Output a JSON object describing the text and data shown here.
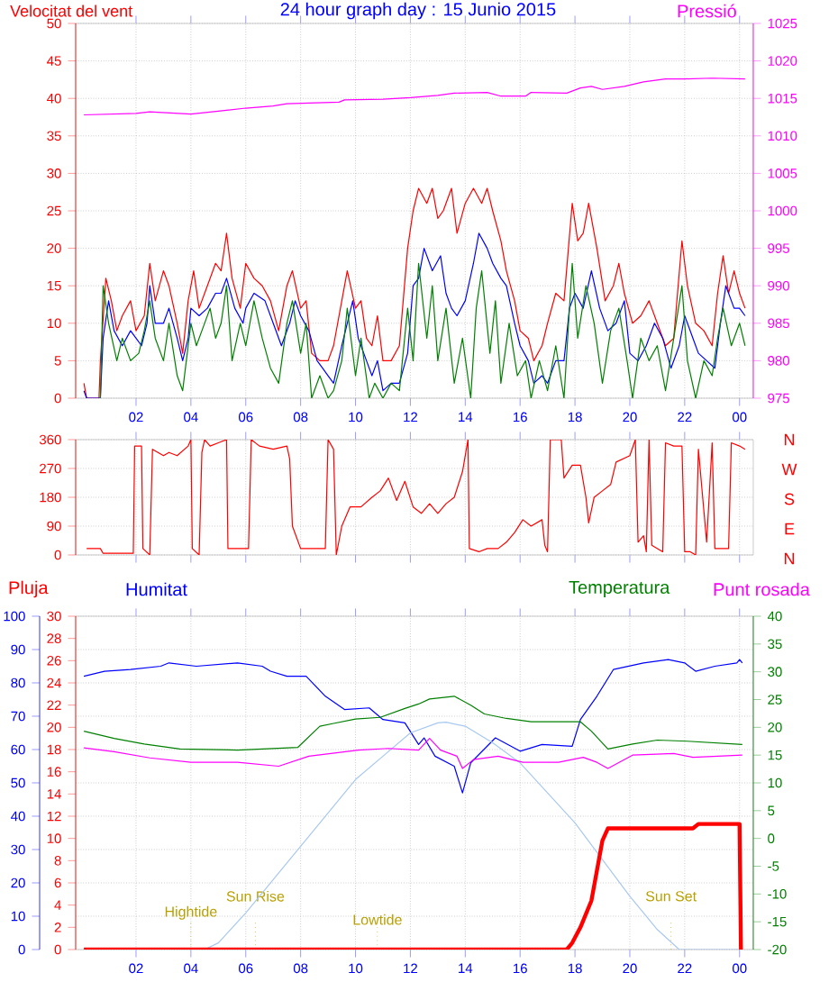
{
  "chart_data": [
    {
      "type": "line",
      "title": "24 hour graph day : 15 Junio 2015",
      "ylabel": "Velocitat del vent",
      "grid": true,
      "xlim": [
        "2015-06-14T23:48",
        "2015-06-16T00:30"
      ],
      "xticks": [
        {
          "value": "2015-06-15T02:00",
          "label": "02"
        },
        {
          "value": "2015-06-15T04:00",
          "label": "04"
        },
        {
          "value": "2015-06-15T06:00",
          "label": "06"
        },
        {
          "value": "2015-06-15T08:00",
          "label": "08"
        },
        {
          "value": "2015-06-15T10:00",
          "label": "10"
        },
        {
          "value": "2015-06-15T12:00",
          "label": "12"
        },
        {
          "value": "2015-06-15T14:00",
          "label": "14"
        },
        {
          "value": "2015-06-15T16:00",
          "label": "16"
        },
        {
          "value": "2015-06-15T18:00",
          "label": "18"
        },
        {
          "value": "2015-06-15T20:00",
          "label": "20"
        },
        {
          "value": "2015-06-15T22:00",
          "label": "22"
        },
        {
          "value": "2015-06-16T00:00",
          "label": "00"
        }
      ],
      "ylim": [
        0,
        50
      ],
      "yticks": [
        0,
        5,
        10,
        15,
        20,
        25,
        30,
        35,
        40,
        45,
        50
      ],
      "y2lim": [
        975,
        1025
      ],
      "y2ticks": [
        975,
        980,
        985,
        990,
        995,
        1000,
        1005,
        1010,
        1015,
        1020,
        1025
      ],
      "series": [
        {
          "color": "#ff0000",
          "x": [
            "2015-06-15T00:06",
            "2015-06-15T00:12",
            "2015-06-15T00:39",
            "2015-06-15T00:42",
            "2015-06-15T00:54",
            "2015-06-15T01:06",
            "2015-06-15T01:18",
            "2015-06-15T01:30",
            "2015-06-15T01:48",
            "2015-06-15T02:00",
            "2015-06-15T02:18",
            "2015-06-15T02:30",
            "2015-06-15T02:42",
            "2015-06-15T03:00",
            "2015-06-15T03:12",
            "2015-06-15T03:30",
            "2015-06-15T03:42",
            "2015-06-15T03:54",
            "2015-06-15T04:06",
            "2015-06-15T04:18",
            "2015-06-15T04:36",
            "2015-06-15T04:54",
            "2015-06-15T05:06",
            "2015-06-15T05:18",
            "2015-06-15T05:30",
            "2015-06-15T05:48",
            "2015-06-15T06:00",
            "2015-06-15T06:18",
            "2015-06-15T06:36",
            "2015-06-15T06:54",
            "2015-06-15T07:12",
            "2015-06-15T07:30",
            "2015-06-15T07:42",
            "2015-06-15T08:00",
            "2015-06-15T08:12",
            "2015-06-15T08:24",
            "2015-06-15T08:42",
            "2015-06-15T09:00",
            "2015-06-15T09:12",
            "2015-06-15T09:30",
            "2015-06-15T09:42",
            "2015-06-15T10:00",
            "2015-06-15T10:12",
            "2015-06-15T10:24",
            "2015-06-15T10:36",
            "2015-06-15T10:48",
            "2015-06-15T11:00",
            "2015-06-15T11:18",
            "2015-06-15T11:36",
            "2015-06-15T11:54",
            "2015-06-15T12:06",
            "2015-06-15T12:18",
            "2015-06-15T12:36",
            "2015-06-15T12:48",
            "2015-06-15T13:00",
            "2015-06-15T13:12",
            "2015-06-15T13:30",
            "2015-06-15T13:42",
            "2015-06-15T14:00",
            "2015-06-15T14:18",
            "2015-06-15T14:36",
            "2015-06-15T14:48",
            "2015-06-15T15:00",
            "2015-06-15T15:18",
            "2015-06-15T15:30",
            "2015-06-15T15:48",
            "2015-06-15T16:00",
            "2015-06-15T16:18",
            "2015-06-15T16:30",
            "2015-06-15T16:48",
            "2015-06-15T17:00",
            "2015-06-15T17:18",
            "2015-06-15T17:36",
            "2015-06-15T17:54",
            "2015-06-15T18:06",
            "2015-06-15T18:18",
            "2015-06-15T18:30",
            "2015-06-15T18:48",
            "2015-06-15T19:06",
            "2015-06-15T19:24",
            "2015-06-15T19:36",
            "2015-06-15T19:48",
            "2015-06-15T20:06",
            "2015-06-15T20:24",
            "2015-06-15T20:42",
            "2015-06-15T21:00",
            "2015-06-15T21:18",
            "2015-06-15T21:36",
            "2015-06-15T21:54",
            "2015-06-15T22:06",
            "2015-06-15T22:24",
            "2015-06-15T22:42",
            "2015-06-15T23:00",
            "2015-06-15T23:12",
            "2015-06-15T23:24",
            "2015-06-15T23:36",
            "2015-06-15T23:48",
            "2015-06-16T00:00",
            "2015-06-16T00:12"
          ],
          "values": [
            2,
            0,
            0,
            5,
            16,
            13,
            9,
            11,
            13,
            9,
            11,
            18,
            13,
            17,
            15,
            10,
            6,
            13,
            17,
            12,
            15,
            18,
            17,
            22,
            16,
            12,
            18,
            16,
            15,
            13,
            9,
            15,
            17,
            12,
            13,
            6,
            5,
            5,
            7,
            13,
            17,
            12,
            13,
            8,
            7,
            11,
            5,
            5,
            7,
            20,
            25,
            28,
            26,
            28,
            24,
            25,
            28,
            22,
            26,
            28,
            26,
            28,
            25,
            21,
            17,
            13,
            9,
            8,
            5,
            7,
            10,
            14,
            13,
            26,
            21,
            22,
            26,
            20,
            13,
            15,
            18,
            14,
            10,
            11,
            13,
            10,
            7,
            8,
            21,
            15,
            10,
            9,
            7,
            14,
            19,
            14,
            17,
            14,
            12
          ]
        },
        {
          "color": "#0000ff",
          "x": [
            "2015-06-15T00:06",
            "2015-06-15T00:12",
            "2015-06-15T00:42",
            "2015-06-15T00:48",
            "2015-06-15T01:00",
            "2015-06-15T01:12",
            "2015-06-15T01:30",
            "2015-06-15T01:48",
            "2015-06-15T02:00",
            "2015-06-15T02:12",
            "2015-06-15T02:24",
            "2015-06-15T02:30",
            "2015-06-15T02:42",
            "2015-06-15T03:00",
            "2015-06-15T03:12",
            "2015-06-15T03:30",
            "2015-06-15T03:42",
            "2015-06-15T03:54",
            "2015-06-15T04:00",
            "2015-06-15T04:18",
            "2015-06-15T04:36",
            "2015-06-15T04:54",
            "2015-06-15T05:06",
            "2015-06-15T05:18",
            "2015-06-15T05:36",
            "2015-06-15T05:54",
            "2015-06-15T06:00",
            "2015-06-15T06:18",
            "2015-06-15T06:42",
            "2015-06-15T07:00",
            "2015-06-15T07:18",
            "2015-06-15T07:36",
            "2015-06-15T07:48",
            "2015-06-15T08:00",
            "2015-06-15T08:18",
            "2015-06-15T08:36",
            "2015-06-15T08:48",
            "2015-06-15T09:00",
            "2015-06-15T09:12",
            "2015-06-15T09:30",
            "2015-06-15T09:42",
            "2015-06-15T09:54",
            "2015-06-15T10:06",
            "2015-06-15T10:24",
            "2015-06-15T10:36",
            "2015-06-15T10:48",
            "2015-06-15T11:00",
            "2015-06-15T11:18",
            "2015-06-15T11:36",
            "2015-06-15T11:54",
            "2015-06-15T12:06",
            "2015-06-15T12:18",
            "2015-06-15T12:30",
            "2015-06-15T12:48",
            "2015-06-15T13:06",
            "2015-06-15T13:18",
            "2015-06-15T13:30",
            "2015-06-15T13:42",
            "2015-06-15T14:00",
            "2015-06-15T14:18",
            "2015-06-15T14:30",
            "2015-06-15T14:48",
            "2015-06-15T15:00",
            "2015-06-15T15:18",
            "2015-06-15T15:30",
            "2015-06-15T15:48",
            "2015-06-15T16:00",
            "2015-06-15T16:18",
            "2015-06-15T16:30",
            "2015-06-15T16:48",
            "2015-06-15T17:00",
            "2015-06-15T17:18",
            "2015-06-15T17:36",
            "2015-06-15T17:48",
            "2015-06-15T18:00",
            "2015-06-15T18:18",
            "2015-06-15T18:36",
            "2015-06-15T18:54",
            "2015-06-15T19:12",
            "2015-06-15T19:30",
            "2015-06-15T19:48",
            "2015-06-15T20:00",
            "2015-06-15T20:18",
            "2015-06-15T20:36",
            "2015-06-15T20:54",
            "2015-06-15T21:12",
            "2015-06-15T21:30",
            "2015-06-15T21:48",
            "2015-06-15T22:00",
            "2015-06-15T22:18",
            "2015-06-15T22:30",
            "2015-06-15T22:48",
            "2015-06-15T23:06",
            "2015-06-15T23:18",
            "2015-06-15T23:30",
            "2015-06-15T23:48",
            "2015-06-16T00:00",
            "2015-06-16T00:12"
          ],
          "values": [
            1,
            0,
            0,
            8,
            13,
            9,
            7,
            9,
            8,
            7,
            10,
            15,
            10,
            10,
            12,
            8,
            5,
            8,
            12,
            11,
            12,
            14,
            14,
            16,
            12,
            10,
            12,
            14,
            13,
            10,
            7,
            10,
            13,
            11,
            9,
            5,
            4,
            3,
            2,
            7,
            10,
            13,
            8,
            5,
            3,
            5,
            1,
            2,
            2,
            6,
            15,
            16,
            20,
            17,
            19,
            14,
            12,
            11,
            13,
            18,
            22,
            20,
            18,
            16,
            15,
            10,
            7,
            5,
            2,
            3,
            2,
            5,
            5,
            12,
            14,
            12,
            17,
            12,
            9,
            10,
            13,
            6,
            5,
            7,
            10,
            8,
            4,
            7,
            11,
            8,
            6,
            5,
            4,
            10,
            15,
            12,
            12,
            11
          ]
        },
        {
          "color": "#008000",
          "x": [
            "2015-06-15T00:42",
            "2015-06-15T00:48",
            "2015-06-15T01:00",
            "2015-06-15T01:18",
            "2015-06-15T01:30",
            "2015-06-15T01:48",
            "2015-06-15T02:06",
            "2015-06-15T02:18",
            "2015-06-15T02:30",
            "2015-06-15T02:42",
            "2015-06-15T03:00",
            "2015-06-15T03:12",
            "2015-06-15T03:30",
            "2015-06-15T03:42",
            "2015-06-15T04:00",
            "2015-06-15T04:12",
            "2015-06-15T04:24",
            "2015-06-15T04:42",
            "2015-06-15T04:54",
            "2015-06-15T05:06",
            "2015-06-15T05:18",
            "2015-06-15T05:30",
            "2015-06-15T05:48",
            "2015-06-15T06:00",
            "2015-06-15T06:18",
            "2015-06-15T06:36",
            "2015-06-15T06:54",
            "2015-06-15T07:12",
            "2015-06-15T07:30",
            "2015-06-15T07:42",
            "2015-06-15T08:00",
            "2015-06-15T08:12",
            "2015-06-15T08:24",
            "2015-06-15T08:42",
            "2015-06-15T09:00",
            "2015-06-15T09:12",
            "2015-06-15T09:30",
            "2015-06-15T09:42",
            "2015-06-15T10:00",
            "2015-06-15T10:12",
            "2015-06-15T10:30",
            "2015-06-15T10:42",
            "2015-06-15T11:00",
            "2015-06-15T11:18",
            "2015-06-15T11:36",
            "2015-06-15T11:54",
            "2015-06-15T12:06",
            "2015-06-15T12:18",
            "2015-06-15T12:36",
            "2015-06-15T12:48",
            "2015-06-15T13:00",
            "2015-06-15T13:18",
            "2015-06-15T13:36",
            "2015-06-15T13:54",
            "2015-06-15T14:12",
            "2015-06-15T14:24",
            "2015-06-15T14:36",
            "2015-06-15T14:54",
            "2015-06-15T15:06",
            "2015-06-15T15:18",
            "2015-06-15T15:36",
            "2015-06-15T15:54",
            "2015-06-15T16:12",
            "2015-06-15T16:24",
            "2015-06-15T16:42",
            "2015-06-15T17:00",
            "2015-06-15T17:18",
            "2015-06-15T17:36",
            "2015-06-15T17:54",
            "2015-06-15T18:06",
            "2015-06-15T18:24",
            "2015-06-15T18:42",
            "2015-06-15T19:00",
            "2015-06-15T19:18",
            "2015-06-15T19:36",
            "2015-06-15T19:54",
            "2015-06-15T20:06",
            "2015-06-15T20:24",
            "2015-06-15T20:42",
            "2015-06-15T21:00",
            "2015-06-15T21:18",
            "2015-06-15T21:36",
            "2015-06-15T21:54",
            "2015-06-15T22:06",
            "2015-06-15T22:24",
            "2015-06-15T22:42",
            "2015-06-15T23:00",
            "2015-06-15T23:12",
            "2015-06-15T23:24",
            "2015-06-15T23:42",
            "2015-06-16T00:00",
            "2015-06-16T00:12"
          ],
          "values": [
            0,
            15,
            10,
            5,
            8,
            5,
            6,
            9,
            13,
            8,
            5,
            10,
            3,
            1,
            10,
            7,
            9,
            12,
            8,
            10,
            15,
            5,
            10,
            7,
            13,
            8,
            4,
            2,
            10,
            13,
            6,
            10,
            0,
            3,
            0,
            1,
            5,
            12,
            3,
            8,
            0,
            2,
            0,
            2,
            1,
            12,
            5,
            18,
            8,
            15,
            5,
            12,
            2,
            8,
            0,
            12,
            17,
            6,
            13,
            2,
            10,
            3,
            5,
            0,
            5,
            1,
            7,
            0,
            18,
            8,
            15,
            10,
            2,
            9,
            12,
            5,
            0,
            8,
            5,
            7,
            1,
            8,
            15,
            5,
            0,
            5,
            3,
            8,
            12,
            7,
            10,
            7
          ]
        },
        {
          "name": "Pressió",
          "color": "#ff00ff",
          "axis": "y2",
          "x": [
            "2015-06-15T00:06",
            "2015-06-15T02:00",
            "2015-06-15T02:30",
            "2015-06-15T04:00",
            "2015-06-15T05:00",
            "2015-06-15T06:00",
            "2015-06-15T07:00",
            "2015-06-15T07:30",
            "2015-06-15T09:24",
            "2015-06-15T09:36",
            "2015-06-15T11:00",
            "2015-06-15T12:00",
            "2015-06-15T13:00",
            "2015-06-15T13:36",
            "2015-06-15T14:48",
            "2015-06-15T15:18",
            "2015-06-15T16:12",
            "2015-06-15T16:24",
            "2015-06-15T17:42",
            "2015-06-15T18:12",
            "2015-06-15T18:36",
            "2015-06-15T19:00",
            "2015-06-15T19:48",
            "2015-06-15T20:30",
            "2015-06-15T21:18",
            "2015-06-15T22:00",
            "2015-06-15T23:00",
            "2015-06-16T00:12"
          ],
          "values": [
            1012.8,
            1013.0,
            1013.2,
            1012.9,
            1013.3,
            1013.7,
            1014.0,
            1014.3,
            1014.5,
            1014.8,
            1014.9,
            1015.1,
            1015.4,
            1015.7,
            1015.8,
            1015.3,
            1015.3,
            1015.8,
            1015.7,
            1016.4,
            1016.6,
            1016.2,
            1016.6,
            1017.2,
            1017.6,
            1017.6,
            1017.7,
            1017.6
          ]
        }
      ]
    },
    {
      "type": "line",
      "grid": true,
      "tick_labels": "y",
      "xlim": [
        "2015-06-14T23:48",
        "2015-06-16T00:30"
      ],
      "xticks": [
        {
          "value": "2015-06-15T02:00",
          "label": null
        },
        {
          "value": "2015-06-15T04:00",
          "label": null
        },
        {
          "value": "2015-06-15T06:00",
          "label": null
        },
        {
          "value": "2015-06-15T08:00",
          "label": null
        },
        {
          "value": "2015-06-15T10:00",
          "label": null
        },
        {
          "value": "2015-06-15T12:00",
          "label": null
        },
        {
          "value": "2015-06-15T14:00",
          "label": null
        },
        {
          "value": "2015-06-15T16:00",
          "label": null
        },
        {
          "value": "2015-06-15T18:00",
          "label": null
        },
        {
          "value": "2015-06-15T20:00",
          "label": null
        },
        {
          "value": "2015-06-15T22:00",
          "label": null
        },
        {
          "value": "2015-06-16T00:00",
          "label": null
        }
      ],
      "ylim": [
        0,
        360
      ],
      "yticks": [
        0,
        90,
        180,
        270,
        360
      ],
      "annotations": [
        "N",
        "W",
        "S",
        "E",
        "N"
      ],
      "series": [
        {
          "color": "#ff0000",
          "x": [
            "2015-06-15T00:12",
            "2015-06-15T00:42",
            "2015-06-15T00:48",
            "2015-06-15T01:36",
            "2015-06-15T01:54",
            "2015-06-15T01:57",
            "2015-06-15T02:12",
            "2015-06-15T02:15",
            "2015-06-15T02:30",
            "2015-06-15T02:36",
            "2015-06-15T03:00",
            "2015-06-15T03:12",
            "2015-06-15T03:30",
            "2015-06-15T03:54",
            "2015-06-15T04:00",
            "2015-06-15T04:03",
            "2015-06-15T04:18",
            "2015-06-15T04:24",
            "2015-06-15T04:30",
            "2015-06-15T04:42",
            "2015-06-15T05:00",
            "2015-06-15T05:18",
            "2015-06-15T05:21",
            "2015-06-15T06:06",
            "2015-06-15T06:12",
            "2015-06-15T06:30",
            "2015-06-15T07:00",
            "2015-06-15T07:30",
            "2015-06-15T07:36",
            "2015-06-15T07:42",
            "2015-06-15T08:00",
            "2015-06-15T08:36",
            "2015-06-15T08:54",
            "2015-06-15T09:00",
            "2015-06-15T09:12",
            "2015-06-15T09:18",
            "2015-06-15T09:30",
            "2015-06-15T09:48",
            "2015-06-15T10:12",
            "2015-06-15T10:36",
            "2015-06-15T10:54",
            "2015-06-15T11:12",
            "2015-06-15T11:30",
            "2015-06-15T11:48",
            "2015-06-15T12:06",
            "2015-06-15T12:24",
            "2015-06-15T12:42",
            "2015-06-15T13:00",
            "2015-06-15T13:18",
            "2015-06-15T13:36",
            "2015-06-15T13:54",
            "2015-06-15T14:06",
            "2015-06-15T14:09",
            "2015-06-15T14:30",
            "2015-06-15T14:48",
            "2015-06-15T15:12",
            "2015-06-15T15:30",
            "2015-06-15T15:48",
            "2015-06-15T16:06",
            "2015-06-15T16:24",
            "2015-06-15T16:48",
            "2015-06-15T16:54",
            "2015-06-15T17:00",
            "2015-06-15T17:06",
            "2015-06-15T17:30",
            "2015-06-15T17:36",
            "2015-06-15T17:54",
            "2015-06-15T18:12",
            "2015-06-15T18:24",
            "2015-06-15T18:30",
            "2015-06-15T18:42",
            "2015-06-15T19:00",
            "2015-06-15T19:18",
            "2015-06-15T19:30",
            "2015-06-15T20:00",
            "2015-06-15T20:12",
            "2015-06-15T20:18",
            "2015-06-15T20:30",
            "2015-06-15T20:36",
            "2015-06-15T20:42",
            "2015-06-15T20:48",
            "2015-06-15T21:12",
            "2015-06-15T21:18",
            "2015-06-15T21:36",
            "2015-06-15T21:54",
            "2015-06-15T22:00",
            "2015-06-15T22:12",
            "2015-06-15T22:24",
            "2015-06-15T22:30",
            "2015-06-15T22:48",
            "2015-06-15T23:00",
            "2015-06-15T23:06",
            "2015-06-15T23:36",
            "2015-06-15T23:42",
            "2015-06-16T00:00",
            "2015-06-16T00:12"
          ],
          "values": [
            20,
            20,
            5,
            5,
            5,
            340,
            340,
            20,
            0,
            330,
            310,
            320,
            310,
            340,
            360,
            20,
            0,
            320,
            360,
            340,
            350,
            360,
            20,
            20,
            360,
            340,
            330,
            340,
            300,
            90,
            20,
            20,
            20,
            360,
            330,
            0,
            90,
            150,
            150,
            180,
            200,
            240,
            170,
            230,
            150,
            130,
            160,
            130,
            160,
            180,
            260,
            360,
            20,
            10,
            20,
            20,
            40,
            70,
            110,
            90,
            110,
            30,
            10,
            360,
            360,
            240,
            280,
            280,
            180,
            100,
            180,
            200,
            220,
            290,
            310,
            360,
            40,
            60,
            10,
            360,
            30,
            10,
            350,
            340,
            340,
            10,
            10,
            0,
            330,
            40,
            350,
            20,
            20,
            350,
            340,
            330
          ]
        }
      ]
    },
    {
      "type": "line",
      "grid": true,
      "xlim": [
        "2015-06-14T23:48",
        "2015-06-16T00:30"
      ],
      "xticks": [
        {
          "value": "2015-06-15T02:00",
          "label": "02"
        },
        {
          "value": "2015-06-15T04:00",
          "label": "04"
        },
        {
          "value": "2015-06-15T06:00",
          "label": "06"
        },
        {
          "value": "2015-06-15T08:00",
          "label": "08"
        },
        {
          "value": "2015-06-15T10:00",
          "label": "10"
        },
        {
          "value": "2015-06-15T12:00",
          "label": "12"
        },
        {
          "value": "2015-06-15T14:00",
          "label": "14"
        },
        {
          "value": "2015-06-15T16:00",
          "label": "16"
        },
        {
          "value": "2015-06-15T18:00",
          "label": "18"
        },
        {
          "value": "2015-06-15T20:00",
          "label": "20"
        },
        {
          "value": "2015-06-15T22:00",
          "label": "22"
        },
        {
          "value": "2015-06-16T00:00",
          "label": "00"
        }
      ],
      "ylim": [
        0,
        100
      ],
      "yticks": [
        0,
        10,
        20,
        30,
        40,
        50,
        60,
        70,
        80,
        90,
        100
      ],
      "y2lim": [
        0,
        30
      ],
      "y2ticks": [
        0,
        2,
        4,
        6,
        8,
        10,
        12,
        14,
        16,
        18,
        20,
        22,
        24,
        26,
        28,
        30
      ],
      "y3lim": [
        -20,
        40
      ],
      "y3ticks": [
        -20,
        -15,
        -10,
        -5,
        0,
        5,
        10,
        15,
        20,
        25,
        30,
        35,
        40
      ],
      "ref_lines": [
        {
          "axis": "x",
          "value": "2015-06-15T04:00",
          "label": "Hightide",
          "color": "#b8a000",
          "line_style": "dotted"
        },
        {
          "axis": "x",
          "value": "2015-06-15T06:21",
          "label": "Sun Rise",
          "color": "#b8a000",
          "line_style": "dotted"
        },
        {
          "axis": "x",
          "value": "2015-06-15T10:48",
          "label": "Lowtide",
          "color": "#b8a000",
          "line_style": "dotted"
        },
        {
          "axis": "x",
          "value": "2015-06-15T21:30",
          "label": "Sun Set",
          "color": "#b8a000",
          "line_style": "dotted"
        }
      ],
      "series": [
        {
          "name": "Humitat",
          "color": "#0000ff",
          "x": [
            "2015-06-15T00:06",
            "2015-06-15T00:51",
            "2015-06-15T01:48",
            "2015-06-15T02:54",
            "2015-06-15T03:12",
            "2015-06-15T04:12",
            "2015-06-15T05:42",
            "2015-06-15T06:36",
            "2015-06-15T06:54",
            "2015-06-15T07:30",
            "2015-06-15T08:12",
            "2015-06-15T08:54",
            "2015-06-15T09:36",
            "2015-06-15T10:30",
            "2015-06-15T11:00",
            "2015-06-15T11:48",
            "2015-06-15T12:18",
            "2015-06-15T12:30",
            "2015-06-15T12:54",
            "2015-06-15T13:36",
            "2015-06-15T13:54",
            "2015-06-15T14:12",
            "2015-06-15T15:06",
            "2015-06-15T16:00",
            "2015-06-15T16:48",
            "2015-06-15T17:54",
            "2015-06-15T18:12",
            "2015-06-15T18:48",
            "2015-06-15T19:24",
            "2015-06-15T20:30",
            "2015-06-15T21:24",
            "2015-06-15T22:00",
            "2015-06-15T22:24",
            "2015-06-15T23:06",
            "2015-06-15T23:54",
            "2015-06-16T00:00",
            "2015-06-16T00:06"
          ],
          "values": [
            82,
            83.5,
            84,
            85,
            86,
            85,
            86,
            85,
            83.5,
            82,
            82,
            76,
            72,
            72.5,
            69,
            68,
            61.5,
            63.5,
            58,
            55,
            47,
            56,
            63.5,
            59.5,
            61.5,
            61,
            69,
            76,
            84,
            86,
            87,
            86,
            83.5,
            85,
            86,
            87,
            86
          ]
        },
        {
          "name": "Temperatura",
          "color": "#008000",
          "axis": "y3",
          "x": [
            "2015-06-15T00:06",
            "2015-06-15T01:12",
            "2015-06-15T02:18",
            "2015-06-15T03:36",
            "2015-06-15T05:42",
            "2015-06-15T07:54",
            "2015-06-15T08:42",
            "2015-06-15T09:12",
            "2015-06-15T10:00",
            "2015-06-15T10:54",
            "2015-06-15T11:48",
            "2015-06-15T12:18",
            "2015-06-15T12:42",
            "2015-06-15T13:36",
            "2015-06-15T14:12",
            "2015-06-15T14:42",
            "2015-06-15T15:30",
            "2015-06-15T16:24",
            "2015-06-15T18:12",
            "2015-06-15T18:36",
            "2015-06-15T19:12",
            "2015-06-15T20:06",
            "2015-06-15T21:00",
            "2015-06-15T22:06",
            "2015-06-16T00:06"
          ],
          "values": [
            19.3,
            18,
            17,
            16.1,
            15.9,
            16.4,
            20.2,
            20.7,
            21.5,
            21.8,
            23.4,
            24.2,
            25.1,
            25.6,
            24,
            22.4,
            21.6,
            21,
            21,
            19.3,
            16.1,
            17,
            17.7,
            17.5,
            16.9
          ]
        },
        {
          "name": "Punt rosada",
          "color": "#ff00ff",
          "axis": "y3",
          "x": [
            "2015-06-15T00:06",
            "2015-06-15T01:12",
            "2015-06-15T02:30",
            "2015-06-15T04:00",
            "2015-06-15T05:42",
            "2015-06-15T07:12",
            "2015-06-15T08:18",
            "2015-06-15T10:06",
            "2015-06-15T11:12",
            "2015-06-15T12:18",
            "2015-06-15T12:42",
            "2015-06-15T13:06",
            "2015-06-15T13:42",
            "2015-06-15T13:54",
            "2015-06-15T14:18",
            "2015-06-15T15:12",
            "2015-06-15T16:06",
            "2015-06-15T17:24",
            "2015-06-15T18:18",
            "2015-06-15T18:48",
            "2015-06-15T19:12",
            "2015-06-15T20:06",
            "2015-06-15T21:36",
            "2015-06-15T22:18",
            "2015-06-16T00:06"
          ],
          "values": [
            16.3,
            15.6,
            14.5,
            13.7,
            13.7,
            13,
            14.8,
            15.9,
            16.2,
            15.9,
            18,
            15.9,
            14.8,
            12.6,
            14.2,
            14.8,
            13.7,
            13.7,
            14.6,
            13.7,
            12.6,
            15,
            15.3,
            14.6,
            15
          ]
        },
        {
          "color": "#a8c8f0",
          "x": [
            "2015-06-15T00:06",
            "2015-06-15T04:30",
            "2015-06-15T05:00",
            "2015-06-15T06:00",
            "2015-06-15T07:00",
            "2015-06-15T08:00",
            "2015-06-15T09:00",
            "2015-06-15T10:00",
            "2015-06-15T11:00",
            "2015-06-15T12:00",
            "2015-06-15T13:00",
            "2015-06-15T13:18",
            "2015-06-15T14:00",
            "2015-06-15T15:00",
            "2015-06-15T16:00",
            "2015-06-15T17:00",
            "2015-06-15T18:00",
            "2015-06-15T19:00",
            "2015-06-15T20:00",
            "2015-06-15T21:00",
            "2015-06-15T21:48",
            "2015-06-16T00:00"
          ],
          "values": [
            0,
            0,
            2,
            11,
            21,
            31,
            41,
            51,
            58,
            65,
            68,
            68.2,
            67,
            62,
            56,
            47,
            38,
            27,
            16,
            6,
            0,
            0
          ]
        },
        {
          "name": "Pluja",
          "color": "#ff0000",
          "axis": "y2",
          "x": [
            "2015-06-15T00:06",
            "2015-06-15T17:42",
            "2015-06-15T17:54",
            "2015-06-15T18:12",
            "2015-06-15T18:36",
            "2015-06-15T18:48",
            "2015-06-15T19:00",
            "2015-06-15T19:12",
            "2015-06-15T22:18",
            "2015-06-15T22:30",
            "2015-06-16T00:00",
            "2015-06-16T00:03"
          ],
          "values": [
            0,
            0,
            0.6,
            2,
            4.4,
            7.1,
            9.8,
            10.9,
            10.9,
            11.3,
            11.3,
            0
          ]
        }
      ]
    }
  ]
}
